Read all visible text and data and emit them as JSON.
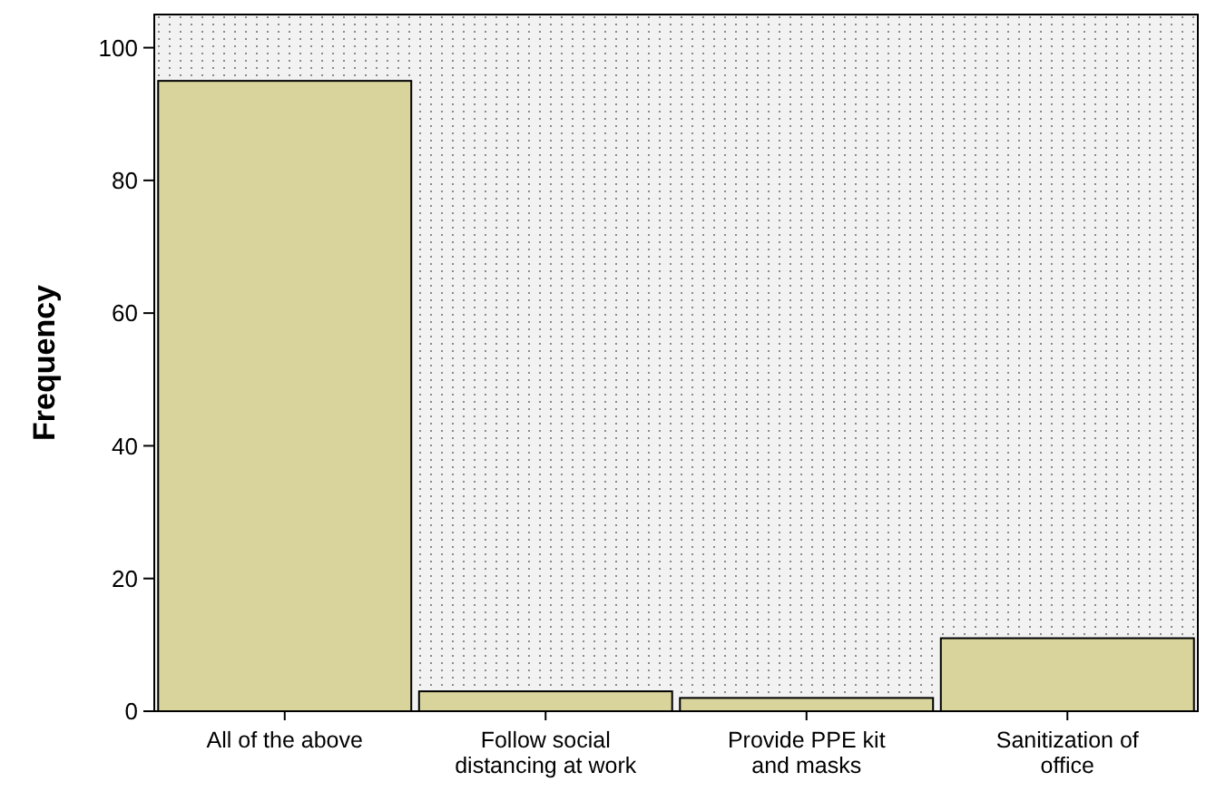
{
  "chart_data": {
    "type": "bar",
    "ylabel": "Frequency",
    "categories": [
      "All of the above",
      "Follow social distancing at work",
      "Provide PPE kit and masks",
      "Sanitization of office"
    ],
    "values": [
      95,
      3,
      2,
      11
    ],
    "color": "#d8d49c",
    "ylim": [
      0,
      105
    ],
    "yticks": [
      0,
      20,
      40,
      60,
      80,
      100
    ],
    "grid": false
  }
}
